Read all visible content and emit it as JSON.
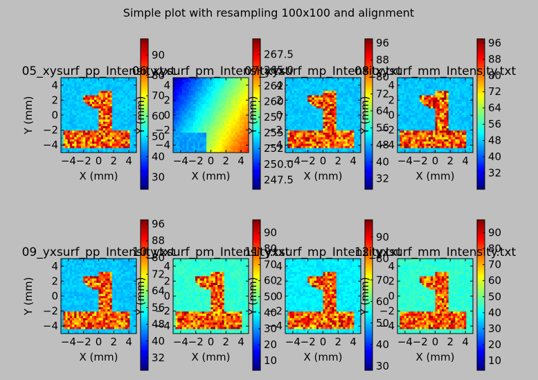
{
  "figure": {
    "suptitle": "Simple plot with resampling 100x100 and alignment",
    "background": "#bfbfbf",
    "colormap": [
      "#00007f",
      "#0000ff",
      "#007fff",
      "#00ffff",
      "#7fff7f",
      "#ffff00",
      "#ff7f00",
      "#ff0000",
      "#7f0000"
    ]
  },
  "chart_data": [
    {
      "type": "heatmap",
      "title": "05_xysurf_pp_Intensity.txt",
      "xlabel": "X (mm)",
      "ylabel": "Y (mm)",
      "xlim": [
        -5,
        5
      ],
      "ylim": [
        -5,
        5
      ],
      "xticks": [
        "−4",
        "−2",
        "0",
        "2",
        "4"
      ],
      "yticks": [
        "4",
        "2",
        "0",
        "−2",
        "−4"
      ],
      "pattern": "digit",
      "background_level": 0.32,
      "colorbar": {
        "min": 24,
        "max": 98,
        "ticks": [
          30,
          40,
          50,
          60,
          70,
          80,
          90
        ],
        "tick_labels": [
          "30",
          "40",
          "50",
          "60",
          "70",
          "80",
          "90"
        ]
      }
    },
    {
      "type": "heatmap",
      "title": "06_xysurf_pm_Intensity.txt",
      "xlabel": "X (mm)",
      "ylabel": "Y (mm)",
      "xlim": [
        -5,
        5
      ],
      "ylim": [
        -5,
        5
      ],
      "xticks": [
        "−4",
        "−2",
        "0",
        "2",
        "4"
      ],
      "yticks": [
        "4",
        "2",
        "0",
        "−2",
        "−4"
      ],
      "pattern": "gradient",
      "background_level": 0.5,
      "colorbar": {
        "min": 246,
        "max": 270,
        "ticks": [
          247.5,
          250,
          252.5,
          255,
          257.5,
          260,
          262.5,
          265,
          267.5
        ],
        "tick_labels": [
          "247.5",
          "250.0",
          "252.5",
          "255.0",
          "257.5",
          "260.0",
          "262.5",
          "265.0",
          "267.5"
        ]
      }
    },
    {
      "type": "heatmap",
      "title": "07_xysurf_mp_Intensity.txt",
      "xlabel": "X (mm)",
      "ylabel": "Y (mm)",
      "xlim": [
        -5,
        5
      ],
      "ylim": [
        -5,
        5
      ],
      "xticks": [
        "−4",
        "−2",
        "0",
        "2",
        "4"
      ],
      "yticks": [
        "4",
        "2",
        "0",
        "−2",
        "−4"
      ],
      "pattern": "digit",
      "background_level": 0.32,
      "colorbar": {
        "min": 27,
        "max": 98,
        "ticks": [
          32,
          40,
          48,
          56,
          64,
          72,
          80,
          88,
          96
        ],
        "tick_labels": [
          "32",
          "40",
          "48",
          "56",
          "64",
          "72",
          "80",
          "88",
          "96"
        ]
      }
    },
    {
      "type": "heatmap",
      "title": "08_xysurf_mm_Intensity.txt",
      "xlabel": "X (mm)",
      "ylabel": "Y (mm)",
      "xlim": [
        -5,
        5
      ],
      "ylim": [
        -5,
        5
      ],
      "xticks": [
        "−4",
        "−2",
        "0",
        "2",
        "4"
      ],
      "yticks": [
        "4",
        "2",
        "0",
        "−2",
        "−4"
      ],
      "pattern": "digit",
      "background_level": 0.32,
      "colorbar": {
        "min": 24,
        "max": 98,
        "ticks": [
          32,
          40,
          48,
          56,
          64,
          72,
          80,
          88,
          96
        ],
        "tick_labels": [
          "32",
          "40",
          "48",
          "56",
          "64",
          "72",
          "80",
          "88",
          "96"
        ]
      }
    },
    {
      "type": "heatmap",
      "title": "09_yxsurf_pp_Intensity.txt",
      "xlabel": "X (mm)",
      "ylabel": "Y (mm)",
      "xlim": [
        -5,
        5
      ],
      "ylim": [
        -5,
        5
      ],
      "xticks": [
        "−4",
        "−2",
        "0",
        "2",
        "4"
      ],
      "yticks": [
        "4",
        "2",
        "0",
        "−2",
        "−4"
      ],
      "pattern": "digit",
      "background_level": 0.32,
      "colorbar": {
        "min": 26,
        "max": 98,
        "ticks": [
          32,
          40,
          48,
          56,
          64,
          72,
          80,
          88,
          96
        ],
        "tick_labels": [
          "32",
          "40",
          "48",
          "56",
          "64",
          "72",
          "80",
          "88",
          "96"
        ]
      }
    },
    {
      "type": "heatmap",
      "title": "10_yxsurf_pm_Intensity.txt",
      "xlabel": "X (mm)",
      "ylabel": "Y (mm)",
      "xlim": [
        -5,
        5
      ],
      "ylim": [
        -5,
        5
      ],
      "xticks": [
        "−4",
        "−2",
        "0",
        "2",
        "4"
      ],
      "yticks": [
        "4",
        "2",
        "0",
        "−2",
        "−4"
      ],
      "pattern": "digit",
      "background_level": 0.42,
      "colorbar": {
        "min": 4,
        "max": 98,
        "ticks": [
          10,
          20,
          30,
          40,
          50,
          60,
          70,
          80,
          90
        ],
        "tick_labels": [
          "10",
          "20",
          "30",
          "40",
          "50",
          "60",
          "70",
          "80",
          "90"
        ]
      }
    },
    {
      "type": "heatmap",
      "title": "11_yxsurf_mp_Intensity.txt",
      "xlabel": "X (mm)",
      "ylabel": "Y (mm)",
      "xlim": [
        -5,
        5
      ],
      "ylim": [
        -5,
        5
      ],
      "xticks": [
        "−4",
        "−2",
        "0",
        "2",
        "4"
      ],
      "yticks": [
        "4",
        "2",
        "0",
        "−2",
        "−4"
      ],
      "pattern": "digit",
      "background_level": 0.36,
      "colorbar": {
        "min": 28,
        "max": 98,
        "ticks": [
          30,
          40,
          50,
          60,
          70,
          80,
          90
        ],
        "tick_labels": [
          "30",
          "40",
          "50",
          "60",
          "70",
          "80",
          "90"
        ]
      }
    },
    {
      "type": "heatmap",
      "title": "12_yxsurf_mm_Intensity.txt",
      "xlabel": "X (mm)",
      "ylabel": "Y (mm)",
      "xlim": [
        -5,
        5
      ],
      "ylim": [
        -5,
        5
      ],
      "xticks": [
        "−4",
        "−2",
        "0",
        "2",
        "4"
      ],
      "yticks": [
        "4",
        "2",
        "0",
        "−2",
        "−4"
      ],
      "pattern": "digit",
      "background_level": 0.42,
      "colorbar": {
        "min": 4,
        "max": 98,
        "ticks": [
          10,
          20,
          30,
          40,
          50,
          60,
          70,
          80,
          90
        ],
        "tick_labels": [
          "10",
          "20",
          "30",
          "40",
          "50",
          "60",
          "70",
          "80",
          "90"
        ]
      }
    }
  ]
}
